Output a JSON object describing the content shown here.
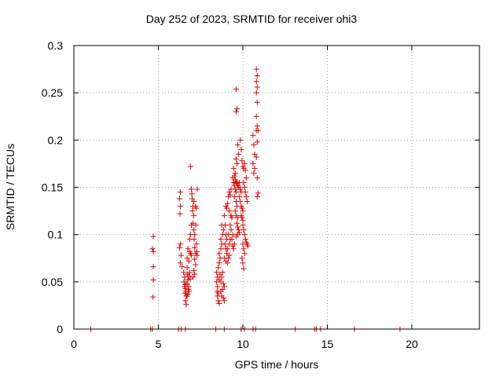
{
  "chart_data": {
    "type": "scatter",
    "title": "Day 252 of 2023, SRMTID for receiver ohi3",
    "xlabel": "GPS time / hours",
    "ylabel": "SRMTID / TECUs",
    "xlim": [
      0,
      24
    ],
    "ylim": [
      0,
      0.3
    ],
    "xticks": [
      0,
      5,
      10,
      15,
      20
    ],
    "yticks": [
      0,
      0.05,
      0.1,
      0.15,
      0.2,
      0.25,
      0.3
    ],
    "ytick_labels": [
      "0",
      "0.05",
      "0.1",
      "0.15",
      "0.2",
      "0.25",
      "0.3"
    ],
    "grid": true,
    "marker": "+",
    "color": "#e00000",
    "series": [
      {
        "name": "SRMTID",
        "points": [
          [
            1.0,
            0
          ],
          [
            4.55,
            0
          ],
          [
            4.65,
            0
          ],
          [
            6.2,
            0
          ],
          [
            6.35,
            0
          ],
          [
            6.6,
            0
          ],
          [
            8.4,
            0
          ],
          [
            8.9,
            0
          ],
          [
            9.9,
            0
          ],
          [
            10.1,
            0
          ],
          [
            10.6,
            0
          ],
          [
            10.75,
            0
          ],
          [
            13.1,
            0
          ],
          [
            14.25,
            0
          ],
          [
            14.35,
            0
          ],
          [
            14.6,
            0
          ],
          [
            16.6,
            0
          ],
          [
            19.3,
            0
          ],
          [
            4.7,
            0.098
          ],
          [
            4.65,
            0.085
          ],
          [
            4.7,
            0.082
          ],
          [
            4.7,
            0.066
          ],
          [
            4.7,
            0.052
          ],
          [
            4.68,
            0.034
          ],
          [
            6.3,
            0.145
          ],
          [
            6.25,
            0.138
          ],
          [
            6.3,
            0.13
          ],
          [
            6.28,
            0.122
          ],
          [
            6.3,
            0.09
          ],
          [
            6.25,
            0.086
          ],
          [
            6.35,
            0.078
          ],
          [
            6.3,
            0.07
          ],
          [
            6.4,
            0.066
          ],
          [
            6.5,
            0.06
          ],
          [
            6.55,
            0.055
          ],
          [
            6.52,
            0.05
          ],
          [
            6.6,
            0.047
          ],
          [
            6.55,
            0.045
          ],
          [
            6.6,
            0.043
          ],
          [
            6.62,
            0.04
          ],
          [
            6.58,
            0.038
          ],
          [
            6.65,
            0.035
          ],
          [
            6.6,
            0.03
          ],
          [
            6.65,
            0.026
          ],
          [
            6.7,
            0.065
          ],
          [
            6.72,
            0.058
          ],
          [
            6.75,
            0.052
          ],
          [
            6.7,
            0.048
          ],
          [
            6.8,
            0.045
          ],
          [
            6.78,
            0.042
          ],
          [
            6.82,
            0.04
          ],
          [
            6.75,
            0.037
          ],
          [
            6.7,
            0.035
          ],
          [
            6.85,
            0.06
          ],
          [
            6.8,
            0.056
          ],
          [
            6.88,
            0.053
          ],
          [
            6.7,
            0.075
          ],
          [
            6.8,
            0.072
          ],
          [
            6.75,
            0.085
          ],
          [
            6.85,
            0.082
          ],
          [
            6.9,
            0.08
          ],
          [
            6.95,
            0.078
          ],
          [
            6.85,
            0.095
          ],
          [
            6.9,
            0.1
          ],
          [
            6.95,
            0.11
          ],
          [
            6.9,
            0.172
          ],
          [
            6.95,
            0.148
          ],
          [
            6.98,
            0.143
          ],
          [
            7.0,
            0.138
          ],
          [
            7.05,
            0.13
          ],
          [
            7.02,
            0.125
          ],
          [
            7.1,
            0.12
          ],
          [
            7.05,
            0.112
          ],
          [
            7.1,
            0.105
          ],
          [
            7.15,
            0.1
          ],
          [
            7.12,
            0.095
          ],
          [
            7.15,
            0.086
          ],
          [
            7.2,
            0.08
          ],
          [
            7.15,
            0.074
          ],
          [
            7.2,
            0.068
          ],
          [
            7.1,
            0.062
          ],
          [
            7.15,
            0.058
          ],
          [
            7.05,
            0.055
          ],
          [
            7.1,
            0.135
          ],
          [
            7.2,
            0.13
          ],
          [
            7.25,
            0.128
          ],
          [
            7.3,
            0.148
          ],
          [
            7.22,
            0.11
          ],
          [
            7.25,
            0.09
          ],
          [
            7.28,
            0.082
          ],
          [
            7.3,
            0.078
          ],
          [
            8.45,
            0.05
          ],
          [
            8.5,
            0.045
          ],
          [
            8.48,
            0.04
          ],
          [
            8.55,
            0.038
          ],
          [
            8.5,
            0.035
          ],
          [
            8.55,
            0.03
          ],
          [
            8.6,
            0.027
          ],
          [
            8.5,
            0.055
          ],
          [
            8.45,
            0.06
          ],
          [
            8.55,
            0.065
          ],
          [
            8.6,
            0.07
          ],
          [
            8.65,
            0.075
          ],
          [
            8.6,
            0.08
          ],
          [
            8.7,
            0.085
          ],
          [
            8.75,
            0.09
          ],
          [
            8.7,
            0.095
          ],
          [
            8.8,
            0.1
          ],
          [
            8.85,
            0.105
          ],
          [
            8.75,
            0.11
          ],
          [
            8.8,
            0.06
          ],
          [
            8.75,
            0.055
          ],
          [
            8.7,
            0.05
          ],
          [
            8.85,
            0.048
          ],
          [
            8.9,
            0.045
          ],
          [
            8.8,
            0.042
          ],
          [
            8.7,
            0.04
          ],
          [
            8.75,
            0.035
          ],
          [
            8.85,
            0.033
          ],
          [
            8.9,
            0.03
          ],
          [
            8.65,
            0.058
          ],
          [
            8.6,
            0.052
          ],
          [
            8.9,
            0.12
          ],
          [
            8.95,
            0.11
          ],
          [
            9.0,
            0.1
          ],
          [
            9.05,
            0.095
          ],
          [
            8.95,
            0.09
          ],
          [
            9.0,
            0.085
          ],
          [
            9.05,
            0.08
          ],
          [
            8.9,
            0.075
          ],
          [
            9.0,
            0.072
          ],
          [
            9.1,
            0.07
          ],
          [
            9.15,
            0.075
          ],
          [
            9.2,
            0.078
          ],
          [
            9.1,
            0.085
          ],
          [
            9.2,
            0.09
          ],
          [
            9.25,
            0.095
          ],
          [
            9.15,
            0.1
          ],
          [
            9.0,
            0.13
          ],
          [
            9.05,
            0.128
          ],
          [
            9.1,
            0.133
          ],
          [
            9.15,
            0.14
          ],
          [
            9.2,
            0.145
          ],
          [
            9.25,
            0.142
          ],
          [
            9.3,
            0.148
          ],
          [
            9.2,
            0.125
          ],
          [
            9.3,
            0.12
          ],
          [
            9.35,
            0.118
          ],
          [
            9.25,
            0.11
          ],
          [
            9.3,
            0.105
          ],
          [
            9.4,
            0.1
          ],
          [
            9.35,
            0.095
          ],
          [
            9.4,
            0.088
          ],
          [
            9.45,
            0.085
          ],
          [
            9.4,
            0.16
          ],
          [
            9.45,
            0.155
          ],
          [
            9.5,
            0.152
          ],
          [
            9.55,
            0.148
          ],
          [
            9.6,
            0.145
          ],
          [
            9.5,
            0.14
          ],
          [
            9.6,
            0.135
          ],
          [
            9.65,
            0.13
          ],
          [
            9.55,
            0.125
          ],
          [
            9.6,
            0.12
          ],
          [
            9.7,
            0.118
          ],
          [
            9.65,
            0.112
          ],
          [
            9.7,
            0.108
          ],
          [
            9.75,
            0.105
          ],
          [
            9.8,
            0.102
          ],
          [
            9.7,
            0.1
          ],
          [
            9.6,
            0.098
          ],
          [
            9.5,
            0.09
          ],
          [
            9.45,
            0.17
          ],
          [
            9.5,
            0.162
          ],
          [
            9.55,
            0.158
          ],
          [
            9.6,
            0.156
          ],
          [
            9.65,
            0.154
          ],
          [
            9.7,
            0.152
          ],
          [
            9.75,
            0.15
          ],
          [
            9.8,
            0.155
          ],
          [
            9.85,
            0.148
          ],
          [
            9.9,
            0.145
          ],
          [
            9.8,
            0.14
          ],
          [
            9.85,
            0.135
          ],
          [
            9.9,
            0.13
          ],
          [
            9.95,
            0.128
          ],
          [
            10.0,
            0.125
          ],
          [
            9.9,
            0.12
          ],
          [
            9.95,
            0.118
          ],
          [
            10.0,
            0.115
          ],
          [
            9.7,
            0.195
          ],
          [
            9.75,
            0.185
          ],
          [
            9.65,
            0.175
          ],
          [
            9.6,
            0.18
          ],
          [
            9.55,
            0.165
          ],
          [
            9.85,
            0.2
          ],
          [
            9.9,
            0.19
          ],
          [
            9.95,
            0.178
          ],
          [
            10.0,
            0.172
          ],
          [
            10.05,
            0.17
          ],
          [
            10.1,
            0.175
          ],
          [
            10.15,
            0.168
          ],
          [
            10.2,
            0.16
          ],
          [
            10.05,
            0.155
          ],
          [
            10.1,
            0.15
          ],
          [
            10.15,
            0.145
          ],
          [
            10.2,
            0.14
          ],
          [
            10.25,
            0.135
          ],
          [
            9.6,
            0.23
          ],
          [
            9.65,
            0.233
          ],
          [
            9.6,
            0.254
          ],
          [
            10.0,
            0.11
          ],
          [
            10.05,
            0.105
          ],
          [
            10.1,
            0.1
          ],
          [
            10.15,
            0.095
          ],
          [
            10.0,
            0.09
          ],
          [
            10.05,
            0.085
          ],
          [
            10.1,
            0.08
          ],
          [
            9.95,
            0.075
          ],
          [
            10.0,
            0.07
          ],
          [
            10.05,
            0.064
          ],
          [
            10.2,
            0.092
          ],
          [
            10.25,
            0.09
          ],
          [
            10.3,
            0.088
          ],
          [
            10.6,
            0.205
          ],
          [
            10.65,
            0.195
          ],
          [
            10.7,
            0.185
          ],
          [
            10.6,
            0.175
          ],
          [
            10.7,
            0.17
          ],
          [
            10.65,
            0.165
          ],
          [
            10.8,
            0.275
          ],
          [
            10.85,
            0.268
          ],
          [
            10.8,
            0.262
          ],
          [
            10.85,
            0.256
          ],
          [
            10.8,
            0.25
          ],
          [
            10.85,
            0.24
          ],
          [
            10.8,
            0.225
          ],
          [
            10.85,
            0.215
          ],
          [
            10.8,
            0.21
          ],
          [
            10.9,
            0.21
          ],
          [
            10.85,
            0.198
          ],
          [
            10.8,
            0.182
          ],
          [
            10.85,
            0.16
          ],
          [
            10.9,
            0.144
          ],
          [
            10.85,
            0.14
          ]
        ]
      }
    ]
  }
}
